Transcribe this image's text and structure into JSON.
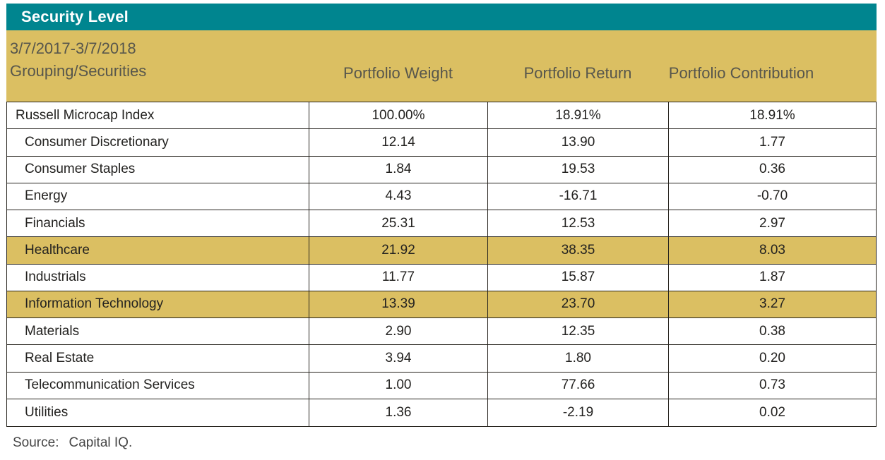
{
  "title": "Security Level",
  "header": {
    "period": "3/7/2017-3/7/2018",
    "grouping_label": "Grouping/Securities",
    "columns": [
      "Portfolio Weight",
      "Portfolio Return",
      "Portfolio Contribution"
    ]
  },
  "colors": {
    "teal_bar": "#00858f",
    "gold_header": "#dbbf62",
    "row_highlight": "#dbbf62",
    "border": "#26231d",
    "header_text": "#57564c",
    "body_text": "#232220"
  },
  "table": {
    "rows": [
      {
        "name": "Russell Microcap Index",
        "weight": "100.00%",
        "return": "18.91%",
        "contribution": "18.91%",
        "highlight": false,
        "indent": false
      },
      {
        "name": "Consumer Discretionary",
        "weight": "12.14",
        "return": "13.90",
        "contribution": "1.77",
        "highlight": false,
        "indent": true
      },
      {
        "name": "Consumer Staples",
        "weight": "1.84",
        "return": "19.53",
        "contribution": "0.36",
        "highlight": false,
        "indent": true
      },
      {
        "name": "Energy",
        "weight": "4.43",
        "return": "-16.71",
        "contribution": "-0.70",
        "highlight": false,
        "indent": true
      },
      {
        "name": "Financials",
        "weight": "25.31",
        "return": "12.53",
        "contribution": "2.97",
        "highlight": false,
        "indent": true
      },
      {
        "name": "Healthcare",
        "weight": "21.92",
        "return": "38.35",
        "contribution": "8.03",
        "highlight": true,
        "indent": true
      },
      {
        "name": "Industrials",
        "weight": "11.77",
        "return": "15.87",
        "contribution": "1.87",
        "highlight": false,
        "indent": true
      },
      {
        "name": "Information Technology",
        "weight": "13.39",
        "return": "23.70",
        "contribution": "3.27",
        "highlight": true,
        "indent": true
      },
      {
        "name": "Materials",
        "weight": "2.90",
        "return": "12.35",
        "contribution": "0.38",
        "highlight": false,
        "indent": true
      },
      {
        "name": "Real Estate",
        "weight": "3.94",
        "return": "1.80",
        "contribution": "0.20",
        "highlight": false,
        "indent": true
      },
      {
        "name": "Telecommunication Services",
        "weight": "1.00",
        "return": "77.66",
        "contribution": "0.73",
        "highlight": false,
        "indent": true
      },
      {
        "name": "Utilities",
        "weight": "1.36",
        "return": "-2.19",
        "contribution": "0.02",
        "highlight": false,
        "indent": true
      }
    ]
  },
  "source": {
    "label": "Source:",
    "value": "Capital IQ."
  }
}
